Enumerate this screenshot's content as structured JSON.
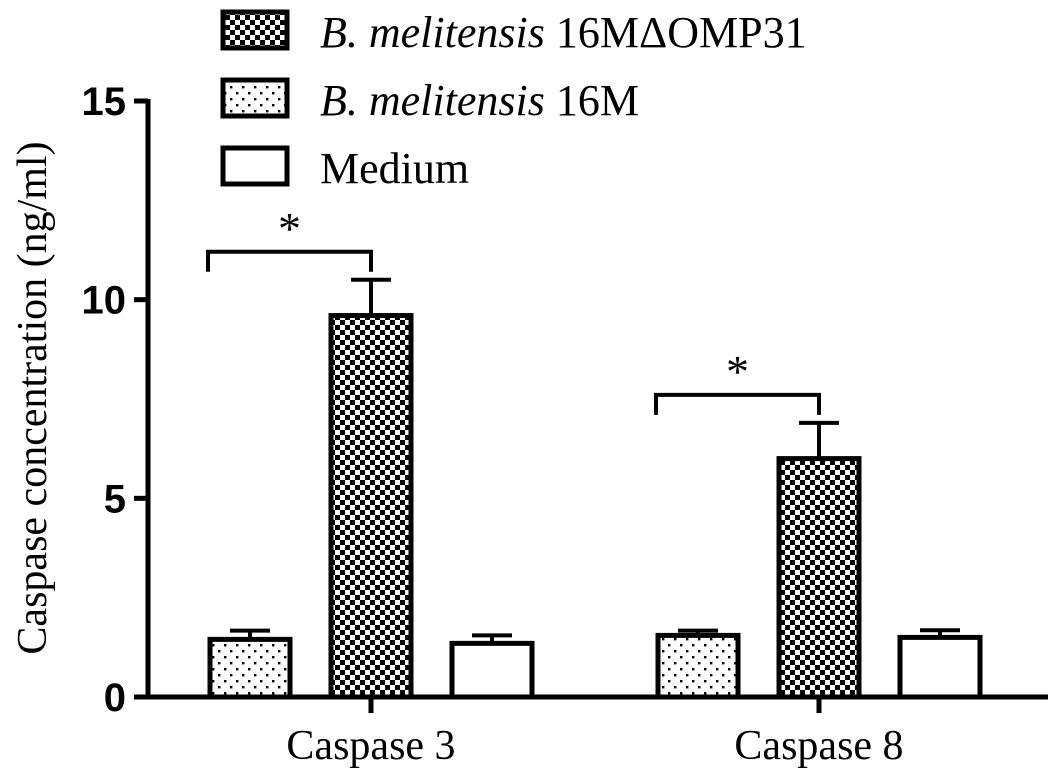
{
  "chart_data": {
    "type": "bar",
    "ylabel": "Caspase  concentration (ng/ml)",
    "xlabel": "",
    "ylim": [
      0,
      15
    ],
    "yticks": [
      0,
      5,
      10,
      15
    ],
    "categories": [
      "Caspase 3",
      "Caspase 8"
    ],
    "series": [
      {
        "name_italic": "B. melitensis",
        "name_rest": " 16M",
        "pattern": "dots",
        "values": [
          1.45,
          1.55
        ],
        "errors": [
          0.22,
          0.12
        ]
      },
      {
        "name_italic": "B. melitensis",
        "name_rest": " 16MΔOMP31",
        "pattern": "checker",
        "values": [
          9.6,
          6.0
        ],
        "errors": [
          0.9,
          0.9
        ]
      },
      {
        "name_italic": "",
        "name_rest": "Medium",
        "pattern": "blank",
        "values": [
          1.35,
          1.5
        ],
        "errors": [
          0.2,
          0.18
        ]
      }
    ],
    "legend_order": [
      1,
      0,
      2
    ],
    "legend_position": "top-center",
    "significance": [
      {
        "category": 0,
        "from_series": 0,
        "to_series": 1,
        "label": "*"
      },
      {
        "category": 1,
        "from_series": 0,
        "to_series": 1,
        "label": "*"
      }
    ],
    "grid": false
  }
}
